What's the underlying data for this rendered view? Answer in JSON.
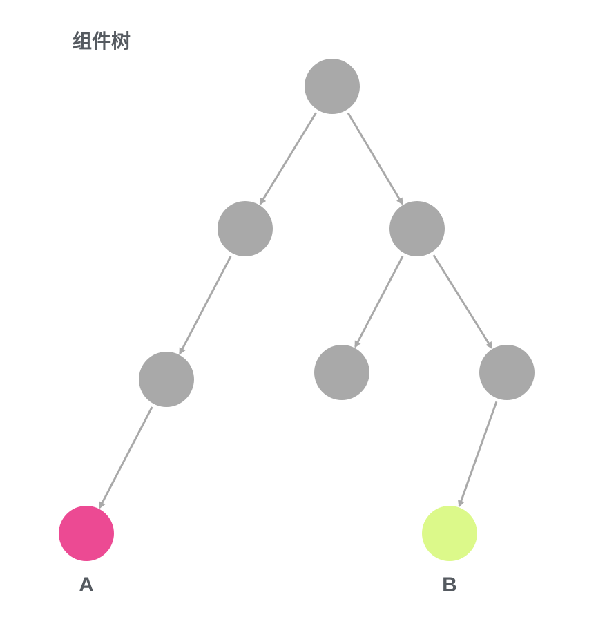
{
  "title": "组件树",
  "colors": {
    "node_default": "#a9a9a9",
    "edge": "#a9a9a9",
    "node_a": "#ec4a93",
    "node_b": "#dcf98a",
    "text": "#555a60"
  },
  "nodes": [
    {
      "id": "root",
      "label": "",
      "color": "node_default"
    },
    {
      "id": "left",
      "label": "",
      "color": "node_default"
    },
    {
      "id": "right",
      "label": "",
      "color": "node_default"
    },
    {
      "id": "left-child",
      "label": "",
      "color": "node_default"
    },
    {
      "id": "right-middle",
      "label": "",
      "color": "node_default"
    },
    {
      "id": "right-right",
      "label": "",
      "color": "node_default"
    },
    {
      "id": "a",
      "label": "A",
      "color": "node_a"
    },
    {
      "id": "b",
      "label": "B",
      "color": "node_b"
    }
  ],
  "edges": [
    {
      "from": "root",
      "to": "left"
    },
    {
      "from": "root",
      "to": "right"
    },
    {
      "from": "left",
      "to": "left-child"
    },
    {
      "from": "left-child",
      "to": "a"
    },
    {
      "from": "right",
      "to": "right-middle"
    },
    {
      "from": "right",
      "to": "right-right"
    },
    {
      "from": "right-right",
      "to": "b"
    }
  ]
}
